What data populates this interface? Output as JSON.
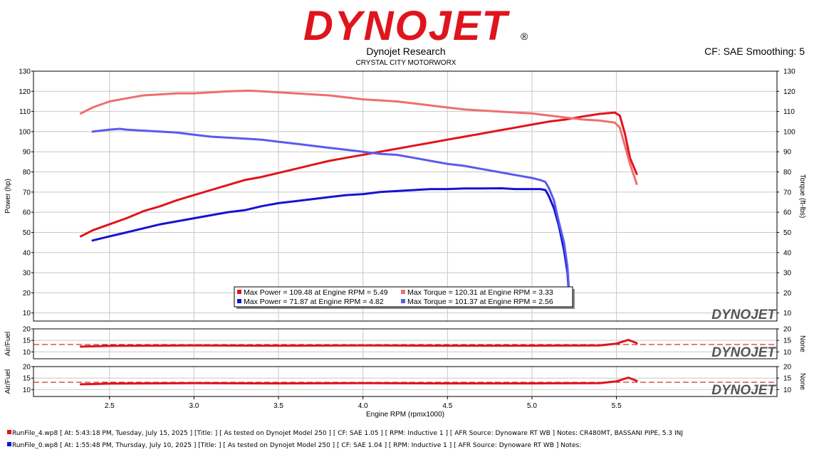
{
  "header": {
    "logo_text": "DYNOJET",
    "trademark": "®",
    "company": "Dynojet Research",
    "shop": "CRYSTAL CITY MOTORWORX",
    "cf_smoothing": "CF: SAE Smoothing: 5"
  },
  "watermark": "DYNOJET",
  "colors": {
    "run4_power": "#e0141c",
    "run4_torque": "#f06e6e",
    "run0_power": "#1414d2",
    "run0_torque": "#5a5af0",
    "afr_run4": "#e0141c",
    "afr_dashed": "#c00000",
    "grid": "#c8c8c8"
  },
  "legend": [
    {
      "text": "Max Power = 109.48 at Engine RPM = 5.49",
      "color": "#e0141c"
    },
    {
      "text": "Max Torque = 120.31 at Engine RPM = 3.33",
      "color": "#f06e6e"
    },
    {
      "text": "Max Power = 71.87 at Engine RPM = 4.82",
      "color": "#1414d2"
    },
    {
      "text": "Max Torque = 101.37 at Engine RPM = 2.56",
      "color": "#5a5af0"
    }
  ],
  "footer": [
    {
      "text": "RunFile_4.wp8 [ At: 5:43:18 PM, Tuesday, July 15, 2025 ] [Title: ]  [ As tested on Dynojet Model 250 ] [ CF: SAE 1.05 ] [ RPM: Inductive 1 ] [ AFR Source: Dynoware RT WB ] Notes: CR480MT, BASSANI PIPE, 5.3 INJ",
      "color": "#e0141c"
    },
    {
      "text": "RunFile_0.wp8 [ At: 1:55:48 PM, Thursday, July 10, 2025 ] [Title: ]  [ As tested on Dynojet Model 250 ] [ CF: SAE 1.04 ] [ RPM: Inductive 1 ] [ AFR Source: Dynoware RT WB ] Notes:",
      "color": "#1414d2"
    }
  ],
  "chart_data": [
    {
      "type": "line",
      "xlabel": "Engine RPM (rpmx1000)",
      "ylabel": "Power (hp)",
      "ylabel_right": "Torque (ft-lbs)",
      "xlim": [
        2.05,
        6.45
      ],
      "ylim": [
        6,
        130
      ],
      "xticks": [
        "2.5",
        "3.0",
        "3.5",
        "4.0",
        "4.5",
        "5.0",
        "5.5"
      ],
      "yticks": [
        "10",
        "20",
        "30",
        "40",
        "50",
        "60",
        "70",
        "80",
        "90",
        "100",
        "110",
        "120",
        "130"
      ],
      "grid": true,
      "legend_position": "bottom-center",
      "series": [
        {
          "key": "run4_power",
          "x": [
            2.33,
            2.4,
            2.5,
            2.6,
            2.7,
            2.8,
            2.9,
            3.0,
            3.1,
            3.2,
            3.3,
            3.4,
            3.5,
            3.6,
            3.7,
            3.8,
            3.9,
            4.0,
            4.1,
            4.2,
            4.3,
            4.4,
            4.5,
            4.6,
            4.7,
            4.8,
            4.9,
            5.0,
            5.1,
            5.2,
            5.3,
            5.4,
            5.49,
            5.52,
            5.55,
            5.58,
            5.62
          ],
          "y": [
            48,
            51,
            54,
            57,
            60.5,
            63,
            66,
            68.5,
            71,
            73.5,
            76,
            77.5,
            79.5,
            81.5,
            83.5,
            85.5,
            87,
            88.5,
            90,
            91.5,
            93,
            94.5,
            96,
            97.5,
            99,
            100.5,
            102,
            103.5,
            105,
            106,
            107.5,
            108.8,
            109.48,
            108,
            99,
            87,
            79
          ]
        },
        {
          "key": "run4_torque",
          "x": [
            2.33,
            2.4,
            2.5,
            2.6,
            2.7,
            2.8,
            2.9,
            3.0,
            3.1,
            3.2,
            3.33,
            3.4,
            3.5,
            3.6,
            3.7,
            3.8,
            3.9,
            4.0,
            4.1,
            4.2,
            4.3,
            4.4,
            4.5,
            4.6,
            4.7,
            4.8,
            4.9,
            5.0,
            5.1,
            5.2,
            5.3,
            5.4,
            5.49,
            5.52,
            5.55,
            5.58,
            5.62
          ],
          "y": [
            109,
            112,
            115,
            116.5,
            118,
            118.5,
            119,
            119,
            119.5,
            120,
            120.31,
            120,
            119.5,
            119,
            118.5,
            118,
            117,
            116,
            115.5,
            115,
            114,
            113,
            112,
            111,
            110.5,
            110,
            109.5,
            109,
            108,
            107,
            106,
            105.5,
            104.5,
            102,
            93,
            84,
            74
          ]
        },
        {
          "key": "run0_power",
          "x": [
            2.4,
            2.5,
            2.6,
            2.7,
            2.8,
            2.9,
            3.0,
            3.1,
            3.2,
            3.3,
            3.4,
            3.5,
            3.6,
            3.7,
            3.8,
            3.9,
            4.0,
            4.1,
            4.2,
            4.3,
            4.4,
            4.5,
            4.6,
            4.7,
            4.82,
            4.9,
            5.0,
            5.05,
            5.08,
            5.1,
            5.13,
            5.16,
            5.19,
            5.21,
            5.22
          ],
          "y": [
            46,
            48,
            50,
            52,
            54,
            55.5,
            57,
            58.5,
            60,
            61,
            63,
            64.5,
            65.5,
            66.5,
            67.5,
            68.5,
            69,
            70,
            70.5,
            71,
            71.5,
            71.5,
            71.8,
            71.8,
            71.87,
            71.5,
            71.5,
            71.5,
            71,
            68,
            62,
            53,
            41,
            30,
            18
          ]
        },
        {
          "key": "run0_torque",
          "x": [
            2.4,
            2.45,
            2.5,
            2.56,
            2.6,
            2.7,
            2.8,
            2.9,
            3.0,
            3.1,
            3.2,
            3.3,
            3.4,
            3.5,
            3.6,
            3.7,
            3.8,
            3.9,
            4.0,
            4.1,
            4.2,
            4.3,
            4.4,
            4.5,
            4.6,
            4.7,
            4.8,
            4.9,
            5.0,
            5.05,
            5.08,
            5.1,
            5.13,
            5.16,
            5.19,
            5.21,
            5.22
          ],
          "y": [
            100,
            100.5,
            101,
            101.37,
            101,
            100.5,
            100,
            99.5,
            98.5,
            97.5,
            97,
            96.5,
            96,
            95,
            94,
            93,
            92,
            91,
            90,
            89,
            88.5,
            87,
            85.5,
            84,
            83,
            81.5,
            80,
            78.5,
            77,
            76,
            75,
            72,
            66,
            55,
            45,
            33,
            20
          ]
        }
      ]
    },
    {
      "type": "line",
      "ylabel": "Air/Fuel",
      "ylabel_right": "None",
      "ylim": [
        7,
        20
      ],
      "yticks": [
        "10",
        "15",
        "20"
      ],
      "reference_value": 13.2,
      "series": [
        {
          "key": "afr_run4",
          "x": [
            2.33,
            2.5,
            3.0,
            3.5,
            4.0,
            4.5,
            5.0,
            5.4,
            5.5,
            5.57,
            5.62
          ],
          "y": [
            12.3,
            12.6,
            12.8,
            12.7,
            12.8,
            12.7,
            12.7,
            12.8,
            13.6,
            15.2,
            13.8
          ]
        }
      ]
    },
    {
      "type": "line",
      "ylabel": "Air/Fuel",
      "ylabel_right": "None",
      "ylim": [
        7,
        20
      ],
      "yticks": [
        "10",
        "15",
        "20"
      ],
      "reference_value": 13.2,
      "series": [
        {
          "key": "afr_run4",
          "x": [
            2.33,
            2.5,
            3.0,
            3.5,
            4.0,
            4.5,
            5.0,
            5.4,
            5.5,
            5.57,
            5.62
          ],
          "y": [
            12.3,
            12.6,
            12.8,
            12.7,
            12.8,
            12.7,
            12.7,
            12.8,
            13.6,
            15.2,
            13.8
          ]
        }
      ]
    }
  ]
}
